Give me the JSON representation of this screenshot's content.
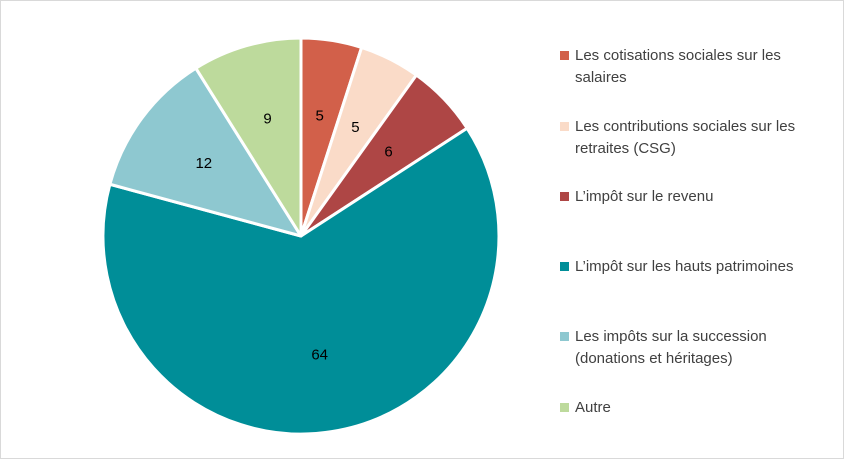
{
  "chart_data": {
    "type": "pie",
    "start_angle_deg": 0,
    "direction": "clockwise",
    "legend_position": "right",
    "slices": [
      {
        "label": "Les cotisations sociales sur les salaires",
        "value": 5,
        "value_label": "5",
        "color": "#D2604A"
      },
      {
        "label": "Les contributions sociales sur les retraites (CSG)",
        "value": 5,
        "value_label": "5",
        "color": "#FADBC8"
      },
      {
        "label": "L’impôt sur le revenu",
        "value": 6,
        "value_label": "6",
        "color": "#AE4645"
      },
      {
        "label": "L’impôt sur les hauts patrimoines",
        "value": 64,
        "value_label": "64",
        "color": "#008E98"
      },
      {
        "label": "Les impôts sur la succession (donations et héritages)",
        "value": 12,
        "value_label": "12",
        "color": "#8EC8D0"
      },
      {
        "label": "Autre",
        "value": 9,
        "value_label": "9",
        "color": "#BDDA9C"
      }
    ]
  }
}
